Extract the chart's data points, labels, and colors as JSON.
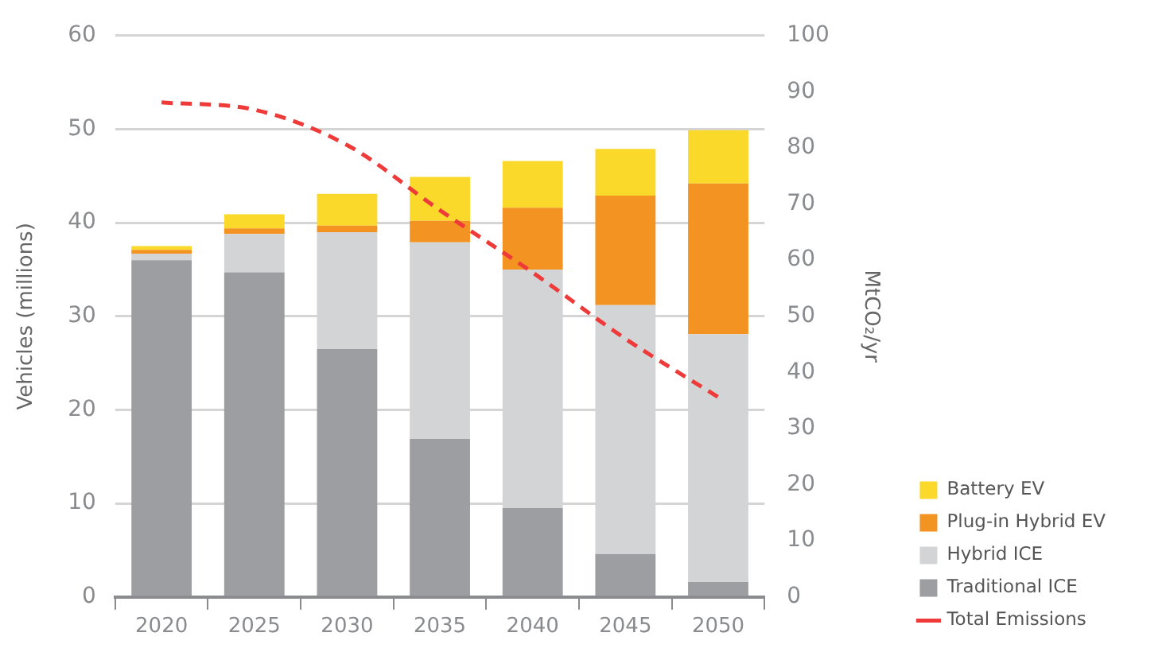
{
  "chart_data": {
    "type": "bar",
    "stacked": true,
    "xlabel": null,
    "ylabel": "Vehicles (millions)",
    "y2label": "MtCO₂/yr",
    "categories": [
      "2020",
      "2025",
      "2030",
      "2035",
      "2040",
      "2045",
      "2050"
    ],
    "series": [
      {
        "name": "Traditional ICE",
        "color": "#9d9ea2",
        "values": [
          36.0,
          34.7,
          26.5,
          16.9,
          9.5,
          4.6,
          1.6
        ]
      },
      {
        "name": "Hybrid ICE",
        "color": "#d3d4d6",
        "values": [
          0.7,
          4.1,
          12.5,
          21.0,
          25.5,
          26.6,
          26.5
        ]
      },
      {
        "name": "Plug-in Hybrid EV",
        "color": "#f39422",
        "values": [
          0.4,
          0.6,
          0.7,
          2.3,
          6.6,
          11.7,
          16.1
        ]
      },
      {
        "name": "Battery EV",
        "color": "#fbd92a",
        "values": [
          0.4,
          1.5,
          3.4,
          4.7,
          5.0,
          5.0,
          5.7
        ]
      },
      {
        "name": "Total Emissions",
        "type": "line",
        "axis": "y2",
        "color": "#ee3a39",
        "line_style": "dashed",
        "values": [
          88.1,
          86.8,
          80.5,
          68.9,
          57.8,
          46.0,
          35.6
        ]
      }
    ],
    "ylim": [
      0,
      60
    ],
    "yticks": [
      0,
      10,
      20,
      30,
      40,
      50,
      60
    ],
    "y2lim": [
      0,
      100
    ],
    "y2ticks": [
      0,
      10,
      20,
      30,
      40,
      50,
      60,
      70,
      80,
      90,
      100
    ],
    "grid": "y",
    "legend": "bottom right",
    "marker": "none"
  }
}
